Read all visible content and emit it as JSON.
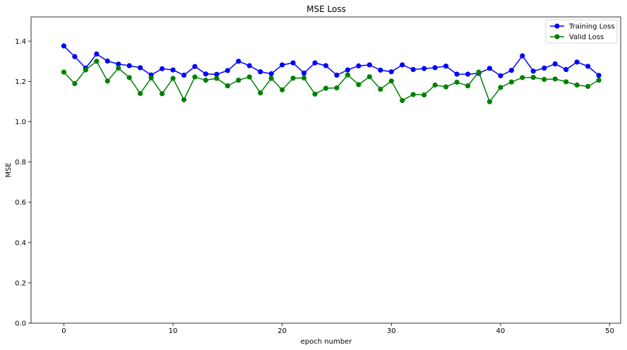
{
  "chart_data": {
    "type": "line",
    "title": "MSE Loss",
    "xlabel": "epoch number",
    "ylabel": "MSE",
    "xlim": [
      -3,
      51
    ],
    "ylim": [
      0,
      1.52
    ],
    "xticks": [
      0,
      10,
      20,
      30,
      40,
      50
    ],
    "yticks": [
      0.0,
      0.2,
      0.4,
      0.6,
      0.8,
      1.0,
      1.2,
      1.4
    ],
    "ytick_labels": [
      "0.0",
      "0.2",
      "0.4",
      "0.6",
      "0.8",
      "1.0",
      "1.2",
      "1.4"
    ],
    "grid": false,
    "legend_position": "top-right",
    "x": [
      0,
      1,
      2,
      3,
      4,
      5,
      6,
      7,
      8,
      9,
      10,
      11,
      12,
      13,
      14,
      15,
      16,
      17,
      18,
      19,
      20,
      21,
      22,
      23,
      24,
      25,
      26,
      27,
      28,
      29,
      30,
      31,
      32,
      33,
      34,
      35,
      36,
      37,
      38,
      39,
      40,
      41,
      42,
      43,
      44,
      45,
      46,
      47,
      48,
      49
    ],
    "series": [
      {
        "name": "Training Loss",
        "color": "#0000ff",
        "values": [
          1.376,
          1.323,
          1.266,
          1.336,
          1.301,
          1.286,
          1.278,
          1.268,
          1.232,
          1.263,
          1.257,
          1.231,
          1.274,
          1.237,
          1.235,
          1.254,
          1.3,
          1.278,
          1.248,
          1.238,
          1.282,
          1.292,
          1.241,
          1.292,
          1.278,
          1.231,
          1.257,
          1.277,
          1.282,
          1.256,
          1.248,
          1.282,
          1.259,
          1.264,
          1.268,
          1.276,
          1.236,
          1.236,
          1.24,
          1.265,
          1.228,
          1.255,
          1.327,
          1.251,
          1.266,
          1.287,
          1.259,
          1.296,
          1.275,
          1.23
        ]
      },
      {
        "name": "Valid Loss",
        "color": "#008000",
        "values": [
          1.246,
          1.189,
          1.257,
          1.3,
          1.202,
          1.266,
          1.219,
          1.14,
          1.217,
          1.139,
          1.215,
          1.109,
          1.222,
          1.206,
          1.215,
          1.178,
          1.206,
          1.222,
          1.143,
          1.215,
          1.158,
          1.216,
          1.217,
          1.137,
          1.166,
          1.168,
          1.232,
          1.184,
          1.223,
          1.161,
          1.202,
          1.105,
          1.135,
          1.133,
          1.182,
          1.173,
          1.196,
          1.178,
          1.246,
          1.099,
          1.17,
          1.197,
          1.219,
          1.22,
          1.21,
          1.212,
          1.198,
          1.182,
          1.175,
          1.206
        ]
      }
    ]
  }
}
